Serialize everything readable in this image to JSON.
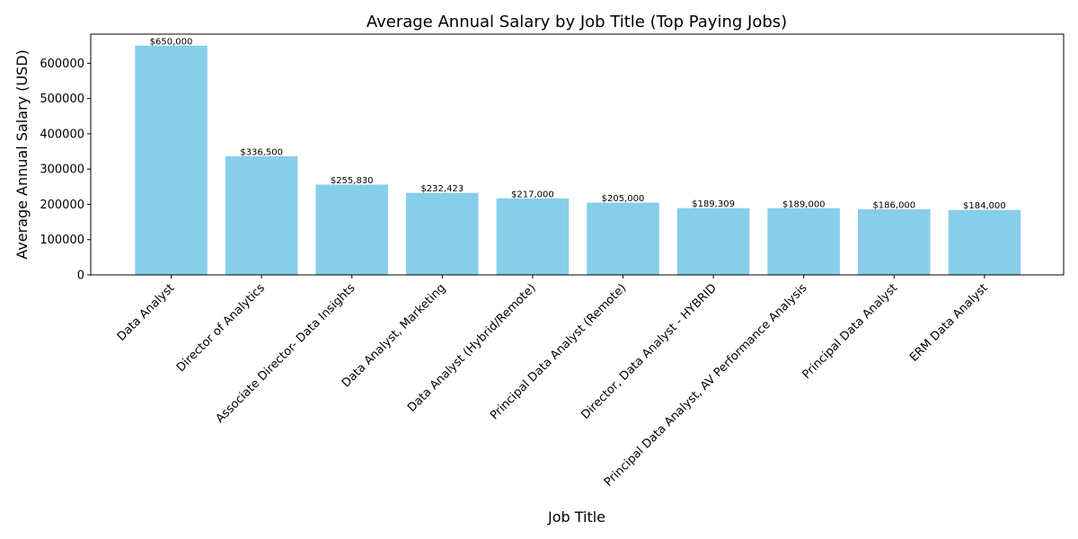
{
  "chart_data": {
    "type": "bar",
    "title": "Average Annual Salary by Job Title (Top Paying Jobs)",
    "xlabel": "Job Title",
    "ylabel": "Average Annual Salary (USD)",
    "categories": [
      "Data Analyst",
      "Director of Analytics",
      "Associate Director- Data Insights",
      "Data Analyst, Marketing",
      "Data Analyst (Hybrid/Remote)",
      "Principal Data Analyst (Remote)",
      "Director, Data Analyst - HYBRID",
      "Principal Data Analyst, AV Performance Analysis",
      "Principal Data Analyst",
      "ERM Data Analyst"
    ],
    "values": [
      650000,
      336500,
      255830,
      232423,
      217000,
      205000,
      189309,
      189000,
      186000,
      184000
    ],
    "value_labels": [
      "$650,000",
      "$336,500",
      "$255,830",
      "$232,423",
      "$217,000",
      "$205,000",
      "$189,309",
      "$189,000",
      "$186,000",
      "$184,000"
    ],
    "yticks": [
      0,
      100000,
      200000,
      300000,
      400000,
      500000,
      600000
    ],
    "ytick_labels": [
      "0",
      "100000",
      "200000",
      "300000",
      "400000",
      "500000",
      "600000"
    ],
    "ylim": [
      0,
      682500
    ],
    "grid": false,
    "bar_color": "#87ceeb"
  }
}
